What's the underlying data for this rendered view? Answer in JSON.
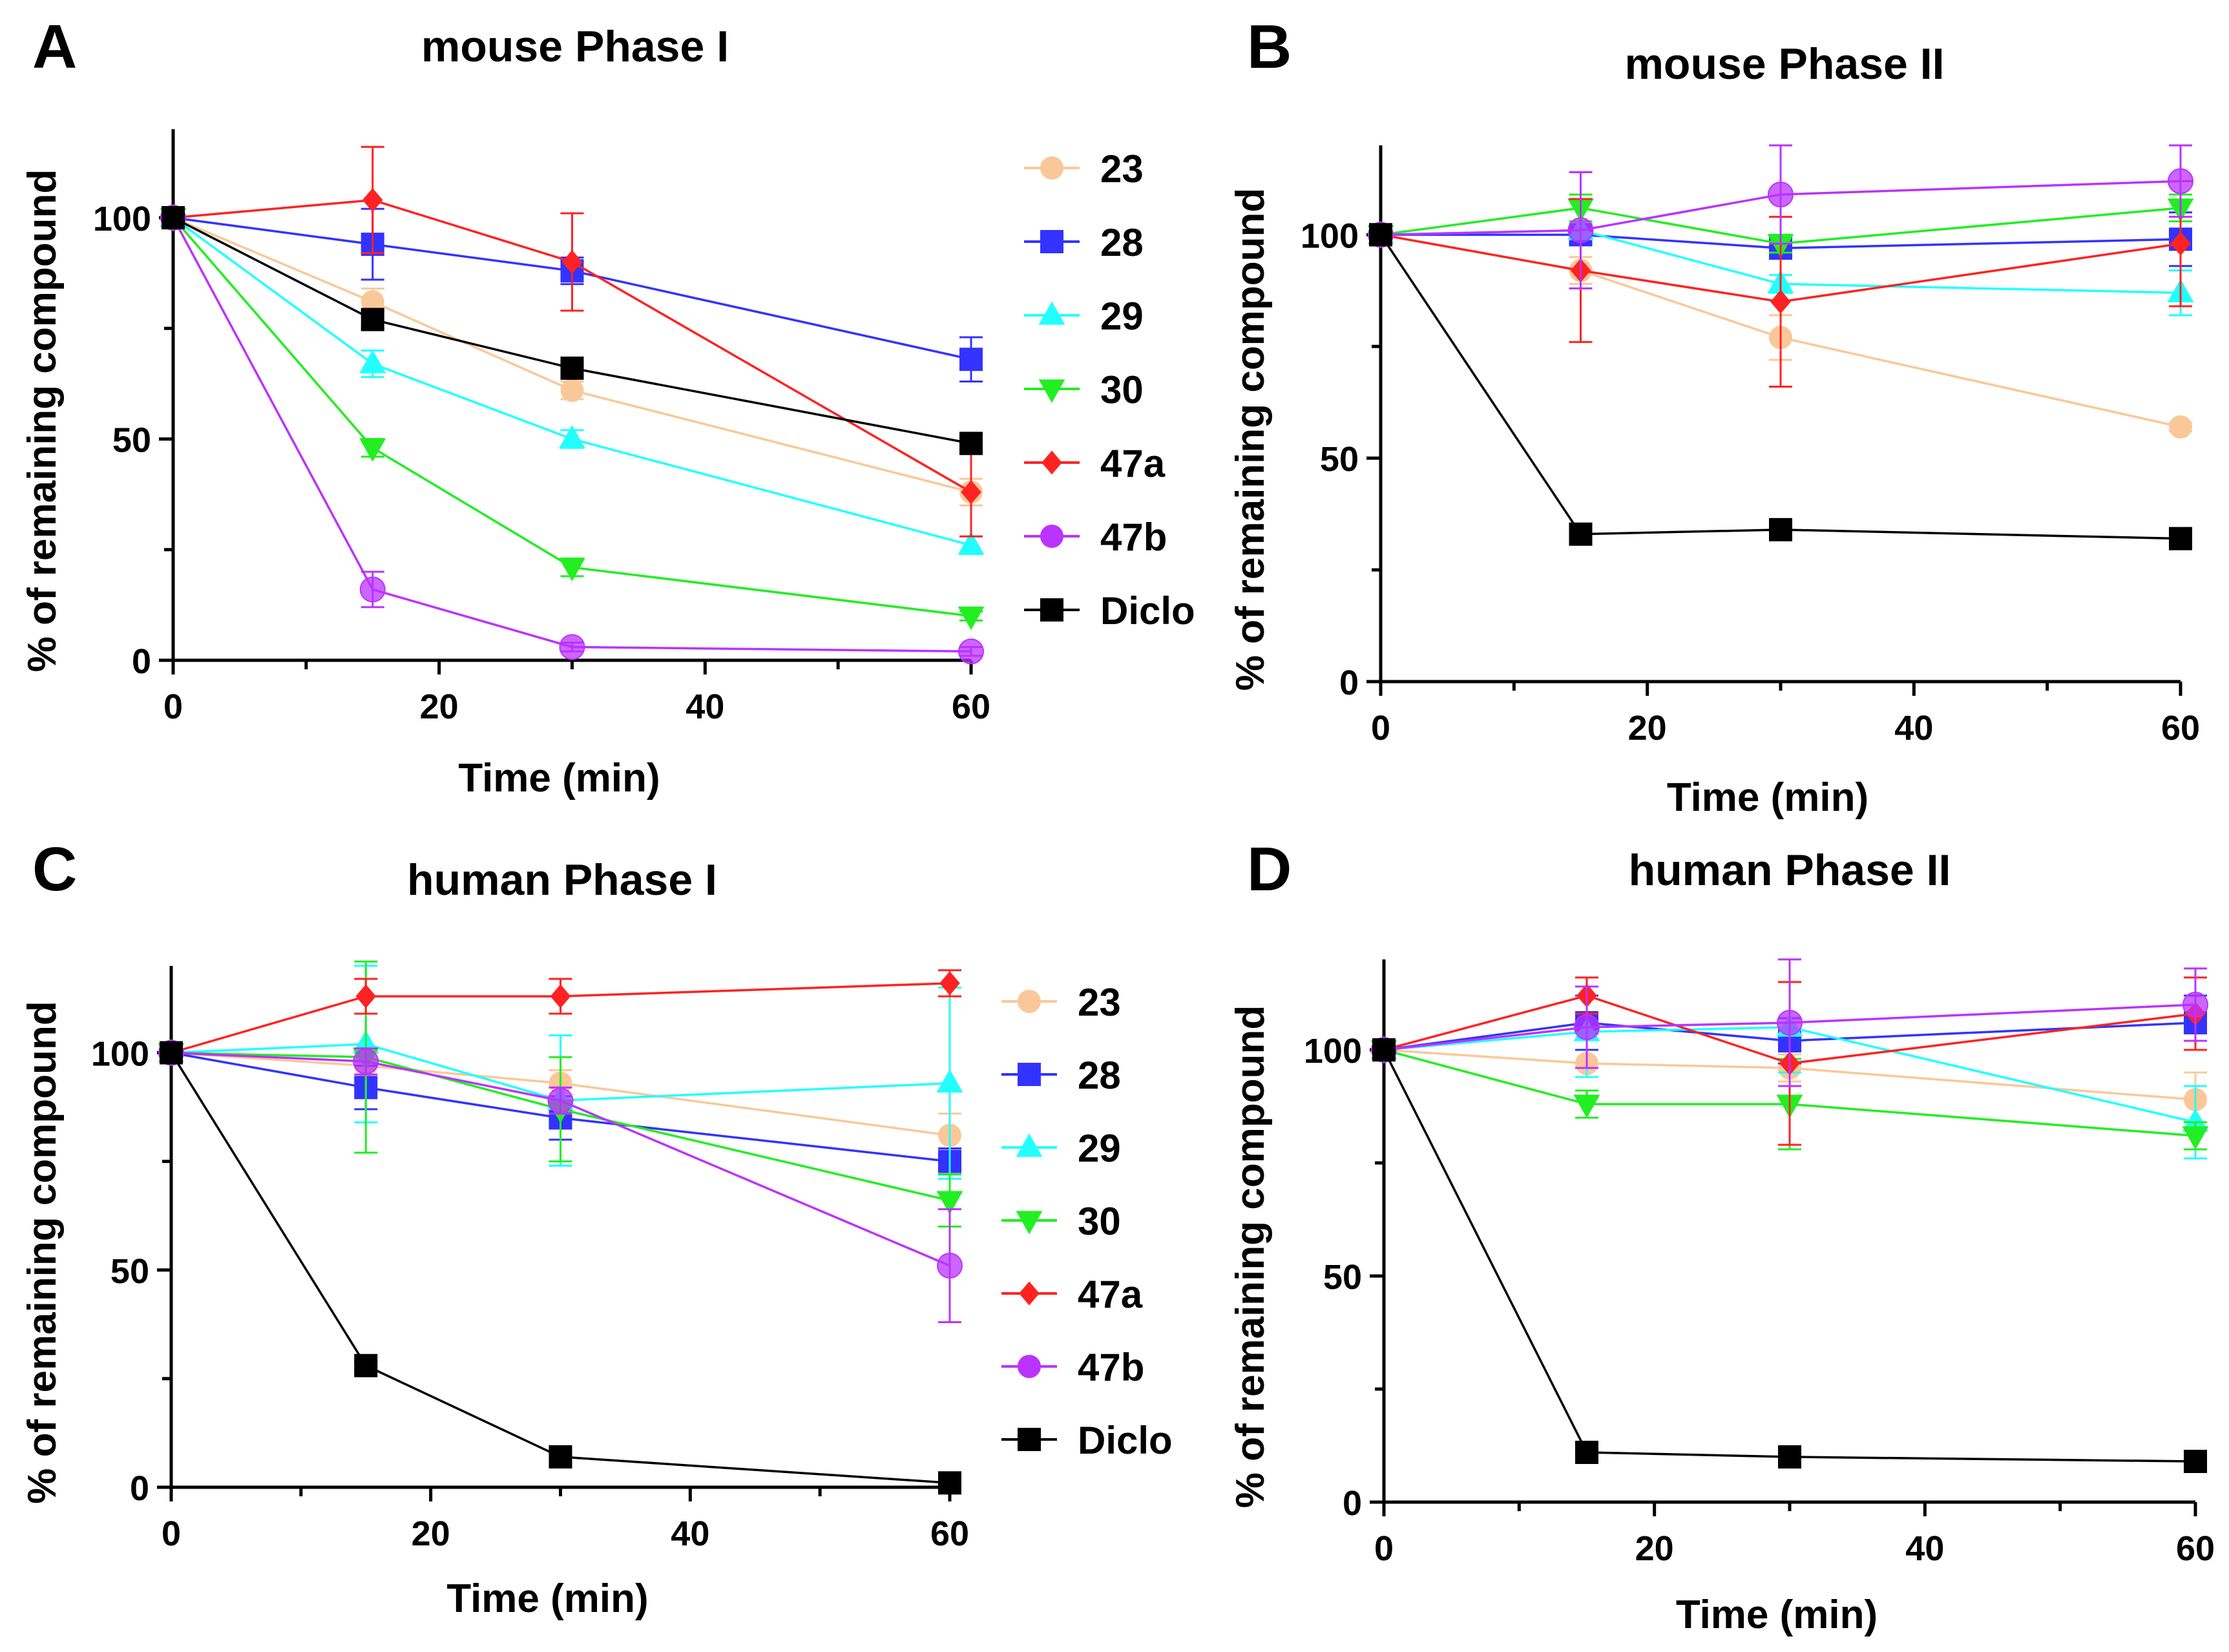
{
  "figure": {
    "legend_series_order": [
      "23",
      "28",
      "29",
      "30",
      "47a",
      "47b",
      "Diclo"
    ]
  },
  "series_styles": {
    "23": {
      "color": "#FAC898",
      "marker": "circle"
    },
    "28": {
      "color": "#3333FF",
      "marker": "square"
    },
    "29": {
      "color": "#22FFFF",
      "marker": "triangle-up"
    },
    "30": {
      "color": "#22EE22",
      "marker": "triangle-down"
    },
    "47a": {
      "color": "#FF2222",
      "marker": "diamond"
    },
    "47b": {
      "color": "#BB33FF",
      "marker": "circle"
    },
    "Diclo": {
      "color": "#000000",
      "marker": "square"
    }
  },
  "chart_data": [
    {
      "panel": "A",
      "type": "line",
      "title": "mouse Phase I",
      "xlabel": "Time (min)",
      "ylabel": "% of remaining compound",
      "xlim": [
        0,
        60
      ],
      "ylim": [
        0,
        120
      ],
      "xticks": [
        0,
        20,
        40,
        60
      ],
      "yticks": [
        0,
        50,
        100
      ],
      "x": [
        0,
        15,
        30,
        60
      ],
      "legend": true,
      "series": [
        {
          "name": "23",
          "values": [
            100,
            81,
            61,
            38
          ],
          "errors": [
            0,
            3,
            2,
            3
          ]
        },
        {
          "name": "28",
          "values": [
            100,
            94,
            88,
            68
          ],
          "errors": [
            0,
            8,
            3,
            5
          ]
        },
        {
          "name": "29",
          "values": [
            100,
            67,
            50,
            26
          ],
          "errors": [
            0,
            3,
            2,
            2
          ]
        },
        {
          "name": "30",
          "values": [
            100,
            48,
            21,
            10
          ],
          "errors": [
            0,
            2,
            2,
            1
          ]
        },
        {
          "name": "47a",
          "values": [
            100,
            104,
            90,
            38
          ],
          "errors": [
            0,
            12,
            11,
            10
          ]
        },
        {
          "name": "47b",
          "values": [
            100,
            16,
            3,
            2
          ],
          "errors": [
            0,
            4,
            1,
            1
          ]
        },
        {
          "name": "Diclo",
          "values": [
            100,
            77,
            66,
            49
          ],
          "errors": [
            0,
            2,
            2,
            2
          ]
        }
      ]
    },
    {
      "panel": "B",
      "type": "line",
      "title": "mouse Phase II",
      "xlabel": "Time (min)",
      "ylabel": "% of remaining compound",
      "xlim": [
        0,
        60
      ],
      "ylim": [
        0,
        120
      ],
      "xticks": [
        0,
        20,
        40,
        60
      ],
      "yticks": [
        0,
        50,
        100
      ],
      "x": [
        0,
        15,
        30,
        60
      ],
      "legend": false,
      "series": [
        {
          "name": "23",
          "values": [
            100,
            92,
            77,
            57
          ],
          "errors": [
            0,
            3,
            5,
            1
          ]
        },
        {
          "name": "28",
          "values": [
            100,
            100,
            97,
            99
          ],
          "errors": [
            0,
            2,
            2,
            6
          ]
        },
        {
          "name": "29",
          "values": [
            100,
            101,
            89,
            87
          ],
          "errors": [
            0,
            2,
            2,
            5
          ]
        },
        {
          "name": "30",
          "values": [
            100,
            106,
            98,
            106
          ],
          "errors": [
            0,
            3,
            2,
            3
          ]
        },
        {
          "name": "47a",
          "values": [
            100,
            92,
            85,
            98
          ],
          "errors": [
            0,
            16,
            19,
            14
          ]
        },
        {
          "name": "47b",
          "values": [
            100,
            101,
            109,
            112
          ],
          "errors": [
            0,
            13,
            11,
            8
          ]
        },
        {
          "name": "Diclo",
          "values": [
            100,
            33,
            34,
            32
          ],
          "errors": [
            0,
            1,
            1,
            1
          ]
        }
      ]
    },
    {
      "panel": "C",
      "type": "line",
      "title": "human Phase I",
      "xlabel": "Time (min)",
      "ylabel": "% of remaining compound",
      "xlim": [
        0,
        60
      ],
      "ylim": [
        0,
        120
      ],
      "xticks": [
        0,
        20,
        40,
        60
      ],
      "yticks": [
        0,
        50,
        100
      ],
      "x": [
        0,
        15,
        30,
        60
      ],
      "legend": true,
      "series": [
        {
          "name": "23",
          "values": [
            100,
            97,
            93,
            81
          ],
          "errors": [
            0,
            3,
            3,
            5
          ]
        },
        {
          "name": "28",
          "values": [
            100,
            92,
            85,
            75
          ],
          "errors": [
            0,
            5,
            5,
            3
          ]
        },
        {
          "name": "29",
          "values": [
            100,
            102,
            89,
            93
          ],
          "errors": [
            0,
            18,
            15,
            22
          ]
        },
        {
          "name": "30",
          "values": [
            100,
            99,
            87,
            66
          ],
          "errors": [
            0,
            22,
            12,
            6
          ]
        },
        {
          "name": "47a",
          "values": [
            100,
            113,
            113,
            116
          ],
          "errors": [
            0,
            4,
            4,
            3
          ]
        },
        {
          "name": "47b",
          "values": [
            100,
            98,
            89,
            51
          ],
          "errors": [
            0,
            3,
            3,
            13
          ]
        },
        {
          "name": "Diclo",
          "values": [
            100,
            28,
            7,
            1
          ],
          "errors": [
            0,
            1,
            1,
            1
          ]
        }
      ]
    },
    {
      "panel": "D",
      "type": "line",
      "title": "human Phase II",
      "xlabel": "Time (min)",
      "ylabel": "% of remaining compound",
      "xlim": [
        0,
        60
      ],
      "ylim": [
        0,
        120
      ],
      "xticks": [
        0,
        20,
        40,
        60
      ],
      "yticks": [
        0,
        50,
        100
      ],
      "x": [
        0,
        15,
        30,
        60
      ],
      "legend": false,
      "series": [
        {
          "name": "23",
          "values": [
            100,
            97,
            96,
            89
          ],
          "errors": [
            0,
            3,
            3,
            6
          ]
        },
        {
          "name": "28",
          "values": [
            100,
            106,
            102,
            106
          ],
          "errors": [
            0,
            6,
            5,
            6
          ]
        },
        {
          "name": "29",
          "values": [
            100,
            104,
            105,
            84
          ],
          "errors": [
            0,
            10,
            10,
            8
          ]
        },
        {
          "name": "30",
          "values": [
            100,
            88,
            88,
            81
          ],
          "errors": [
            0,
            3,
            10,
            3
          ]
        },
        {
          "name": "47a",
          "values": [
            100,
            112,
            97,
            108
          ],
          "errors": [
            0,
            4,
            18,
            8
          ]
        },
        {
          "name": "47b",
          "values": [
            100,
            105,
            106,
            110
          ],
          "errors": [
            0,
            9,
            14,
            8
          ]
        },
        {
          "name": "Diclo",
          "values": [
            100,
            11,
            10,
            9
          ],
          "errors": [
            0,
            1,
            1,
            1
          ]
        }
      ]
    }
  ]
}
